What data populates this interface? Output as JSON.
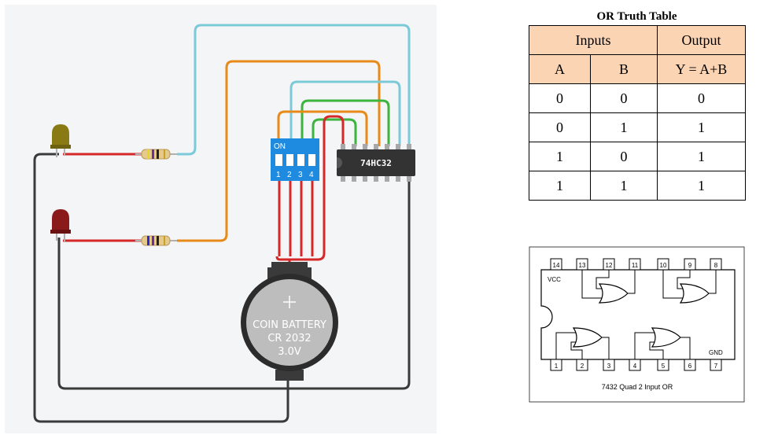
{
  "circuit": {
    "dip_switch": {
      "on_label": "ON",
      "numbers": [
        "1",
        "2",
        "3",
        "4"
      ]
    },
    "chip_label": "74HC32",
    "battery": {
      "lines": [
        "COIN BATTERY",
        "CR 2032",
        "3.0V"
      ]
    },
    "colors": {
      "board_bg": "#f4f5f7",
      "wire_red": "#d62828",
      "wire_black": "#3a3a3a",
      "wire_orange": "#e88a1a",
      "wire_blue": "#7ccad8",
      "wire_green": "#3db43d",
      "dip_blue": "#1e8be0",
      "chip_body": "#333333",
      "led_yellow": "#8a7a14",
      "led_red": "#8b1a1a"
    }
  },
  "truth_table": {
    "title": "OR Truth Table",
    "group_headers": {
      "inputs": "Inputs",
      "output": "Output"
    },
    "columns": [
      "A",
      "B",
      "Y = A+B"
    ],
    "rows": [
      [
        "0",
        "0",
        "0"
      ],
      [
        "0",
        "1",
        "1"
      ],
      [
        "1",
        "0",
        "1"
      ],
      [
        "1",
        "1",
        "1"
      ]
    ]
  },
  "pinout": {
    "top_pins": [
      "14",
      "13",
      "12",
      "11",
      "10",
      "9",
      "8"
    ],
    "bottom_pins": [
      "1",
      "2",
      "3",
      "4",
      "5",
      "6",
      "7"
    ],
    "vcc_label": "VCC",
    "gnd_label": "GND",
    "caption": "7432 Quad 2 Input OR"
  }
}
